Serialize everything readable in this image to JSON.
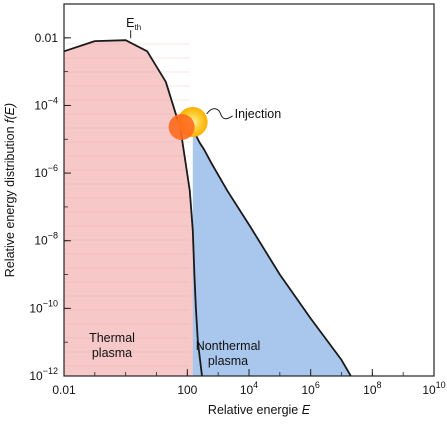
{
  "chart_data": {
    "type": "area",
    "xlabel": "Relative energie E",
    "ylabel": "Relative energy distribution f(E)",
    "x_scale": "log",
    "y_scale": "log",
    "xlim": [
      0.01,
      10000000000
    ],
    "ylim": [
      1e-12,
      0.1
    ],
    "grid": false,
    "x_ticks": [
      {
        "value": 0.01,
        "label": "0.01"
      },
      {
        "value": 100,
        "label": "100"
      },
      {
        "value": 10000,
        "label": "10",
        "sup": "4"
      },
      {
        "value": 1000000,
        "label": "10",
        "sup": "6"
      },
      {
        "value": 100000000,
        "label": "10",
        "sup": "8"
      },
      {
        "value": 10000000000,
        "label": "10",
        "sup": "10"
      }
    ],
    "y_ticks": [
      {
        "value": 1e-12,
        "label": "10",
        "sup": "−12"
      },
      {
        "value": 1e-10,
        "label": "10",
        "sup": "−10"
      },
      {
        "value": 1e-08,
        "label": "10",
        "sup": "−8"
      },
      {
        "value": 1e-06,
        "label": "10",
        "sup": "−6"
      },
      {
        "value": 0.0001,
        "label": "10",
        "sup": "−4"
      },
      {
        "value": 0.01,
        "label": "0.01"
      }
    ],
    "series": [
      {
        "region": "thermal",
        "color": "#f6c8c8",
        "label_lines": [
          "Thermal",
          "plasma"
        ],
        "x": [
          0.01,
          0.1,
          1,
          5,
          20,
          60,
          120,
          150,
          170,
          190,
          220,
          300
        ],
        "y": [
          0.004,
          0.008,
          0.0085,
          0.004,
          0.0005,
          2e-05,
          3e-07,
          2e-08,
          1e-09,
          1e-10,
          1e-11,
          1e-12
        ]
      },
      {
        "region": "nonthermal",
        "color": "#a9c6ec",
        "label_lines": [
          "Nonthermal",
          "plasma"
        ],
        "x": [
          150,
          250,
          350,
          600,
          2000,
          10000,
          100000,
          1000000,
          10000000,
          20000000
        ],
        "y": [
          2e-05,
          8e-06,
          5e-06,
          2e-06,
          3e-07,
          3e-08,
          1e-09,
          5e-11,
          3e-12,
          1e-12
        ]
      }
    ],
    "annotations": [
      {
        "text": "E",
        "sub": "th",
        "x": 1,
        "y": 0.0085
      },
      {
        "text": "Injection",
        "x": 200,
        "y": 6e-05,
        "marker_color": "#ff6a1e"
      }
    ]
  }
}
